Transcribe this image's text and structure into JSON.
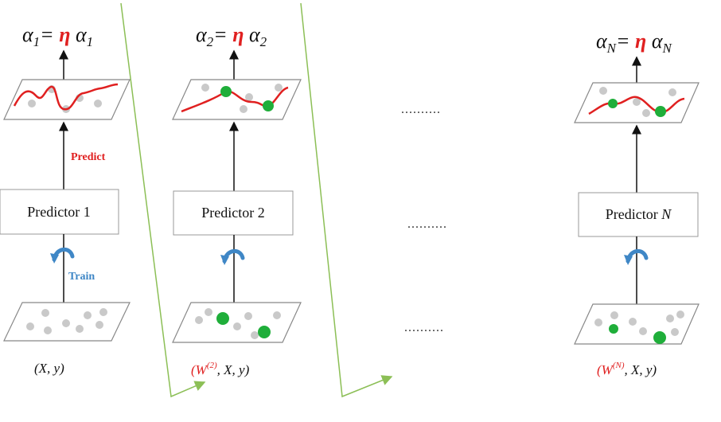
{
  "stages": [
    {
      "formula": {
        "lhs": "α",
        "sub": "1",
        "eq": "= ",
        "eta": "η",
        "rhs": " α",
        "rhs_sub": "1"
      },
      "predictor": {
        "prefix": "Predictor  ",
        "index": "1"
      },
      "data_label": {
        "weight": "",
        "rest": "(X, y)"
      }
    },
    {
      "formula": {
        "lhs": "α",
        "sub": "2",
        "eq": "= ",
        "eta": "η",
        "rhs": " α",
        "rhs_sub": "2"
      },
      "predictor": {
        "prefix": "Predictor  ",
        "index": "2"
      },
      "data_label": {
        "weight": "(W",
        "weight_sup": "(2)",
        "rest": ",  X, y)"
      }
    },
    {
      "formula": {
        "lhs": "α",
        "sub": "N",
        "eq": "= ",
        "eta": "η",
        "rhs": " α",
        "rhs_sub": "N"
      },
      "predictor": {
        "prefix": "Predictor  ",
        "index": "N"
      },
      "data_label": {
        "weight": "(W",
        "weight_sup": "(N)",
        "rest": ",  X, y)"
      }
    }
  ],
  "annotations": {
    "predict": "Predict",
    "train": "Train"
  },
  "ellipsis": "..........",
  "colors": {
    "curve": "#e02020",
    "highlight_point": "#1fae3a",
    "data_point": "#c9c9c9",
    "train_arrow": "#3f87c6",
    "flow_line": "#8cbf56",
    "eta": "#e02020"
  },
  "icons": {
    "train_arrow": "curved-arrow-icon"
  }
}
